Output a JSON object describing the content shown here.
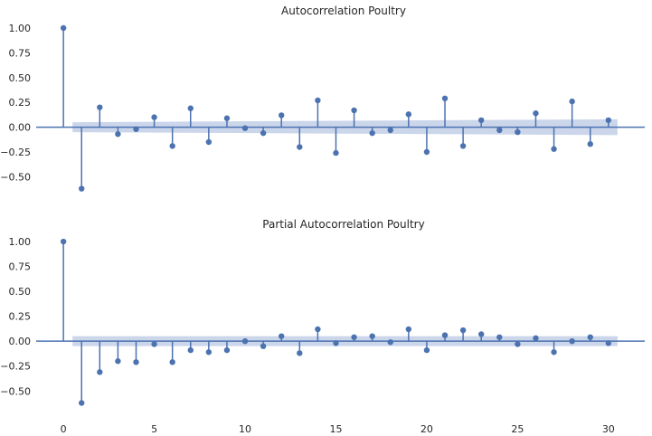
{
  "chart_data": [
    {
      "type": "stem",
      "title": "Autocorrelation Poultry",
      "xlabel": "",
      "ylabel": "",
      "x": [
        0,
        1,
        2,
        3,
        4,
        5,
        6,
        7,
        8,
        9,
        10,
        11,
        12,
        13,
        14,
        15,
        16,
        17,
        18,
        19,
        20,
        21,
        22,
        23,
        24,
        25,
        26,
        27,
        28,
        29,
        30
      ],
      "values": [
        1.0,
        -0.62,
        0.2,
        -0.07,
        -0.02,
        0.1,
        -0.19,
        0.19,
        -0.15,
        0.09,
        -0.01,
        -0.06,
        0.12,
        -0.2,
        0.27,
        -0.26,
        0.17,
        -0.06,
        -0.03,
        0.13,
        -0.25,
        0.29,
        -0.19,
        0.07,
        -0.03,
        -0.05,
        0.14,
        -0.22,
        0.26,
        -0.17,
        0.07
      ],
      "confidence_band": {
        "x_range": [
          0.5,
          30.5
        ],
        "lower_start": -0.05,
        "lower_end": -0.08,
        "upper_start": 0.05,
        "upper_end": 0.08
      },
      "xlim": [
        -1.5,
        32
      ],
      "ylim": [
        -0.77,
        1.1
      ],
      "yticks": [
        1.0,
        0.75,
        0.5,
        0.25,
        0.0,
        -0.25,
        -0.5
      ],
      "ytick_labels": [
        "1.00",
        "0.75",
        "0.50",
        "0.25",
        "0.00",
        "−0.25",
        "−0.50"
      ],
      "grid": false,
      "colors": {
        "stem": "#4c72b0",
        "band": "#c5d2e9",
        "zero_line": "#4c72b0"
      }
    },
    {
      "type": "stem",
      "title": "Partial Autocorrelation Poultry",
      "xlabel": "",
      "ylabel": "",
      "x": [
        0,
        1,
        2,
        3,
        4,
        5,
        6,
        7,
        8,
        9,
        10,
        11,
        12,
        13,
        14,
        15,
        16,
        17,
        18,
        19,
        20,
        21,
        22,
        23,
        24,
        25,
        26,
        27,
        28,
        29,
        30
      ],
      "values": [
        1.0,
        -0.62,
        -0.31,
        -0.2,
        -0.21,
        -0.03,
        -0.21,
        -0.09,
        -0.11,
        -0.09,
        0.0,
        -0.05,
        0.05,
        -0.12,
        0.12,
        -0.02,
        0.04,
        0.05,
        -0.01,
        0.12,
        -0.09,
        0.06,
        0.11,
        0.07,
        0.04,
        -0.03,
        0.03,
        -0.11,
        0.0,
        0.04,
        -0.02
      ],
      "confidence_band": {
        "x_range": [
          0.5,
          30.5
        ],
        "lower_start": -0.05,
        "lower_end": -0.05,
        "upper_start": 0.05,
        "upper_end": 0.05
      },
      "xlim": [
        -1.5,
        32
      ],
      "ylim": [
        -0.77,
        1.1
      ],
      "yticks": [
        1.0,
        0.75,
        0.5,
        0.25,
        0.0,
        -0.25,
        -0.5
      ],
      "ytick_labels": [
        "1.00",
        "0.75",
        "0.50",
        "0.25",
        "0.00",
        "−0.25",
        "−0.50"
      ],
      "xticks": [
        0,
        5,
        10,
        15,
        20,
        25,
        30
      ],
      "xtick_labels": [
        "0",
        "5",
        "10",
        "15",
        "20",
        "25",
        "30"
      ],
      "grid": false,
      "colors": {
        "stem": "#4c72b0",
        "band": "#c5d2e9",
        "zero_line": "#4c72b0"
      }
    }
  ]
}
